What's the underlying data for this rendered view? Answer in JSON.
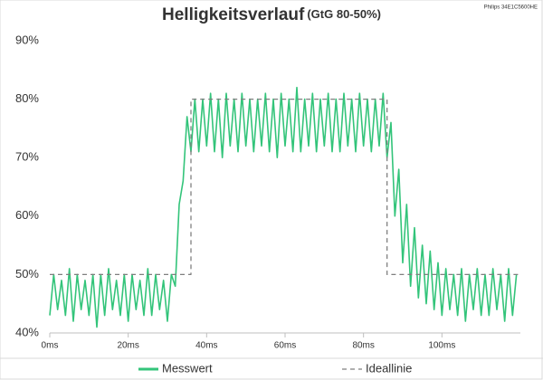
{
  "chart_data": {
    "type": "line",
    "title": "Helligkeitsverlauf",
    "subtitle": "(GtG 80-50%)",
    "annotation": "Philips 34E1C5600HE",
    "xlim": [
      0,
      120
    ],
    "xticks": [
      {
        "value": 0,
        "label": "0ms"
      },
      {
        "value": 20,
        "label": "20ms"
      },
      {
        "value": 40,
        "label": "40ms"
      },
      {
        "value": 60,
        "label": "60ms"
      },
      {
        "value": 80,
        "label": "80ms"
      },
      {
        "value": 100,
        "label": "100ms"
      }
    ],
    "ylim": [
      40,
      90
    ],
    "yticks": [
      {
        "value": 40,
        "label": "40%"
      },
      {
        "value": 50,
        "label": "50%"
      },
      {
        "value": 60,
        "label": "60%"
      },
      {
        "value": 70,
        "label": "70%"
      },
      {
        "value": 80,
        "label": "80%"
      },
      {
        "value": 90,
        "label": "90%"
      }
    ],
    "grid": false,
    "legend": "bottom",
    "series": [
      {
        "name": "Messwert",
        "color": "#33c47a",
        "dash": false,
        "x": [
          0,
          1,
          2,
          3,
          4,
          5,
          6,
          7,
          8,
          9,
          10,
          11,
          12,
          13,
          14,
          15,
          16,
          17,
          18,
          19,
          20,
          21,
          22,
          23,
          24,
          25,
          26,
          27,
          28,
          29,
          30,
          31,
          32,
          33,
          34,
          35,
          36,
          37,
          38,
          39,
          40,
          41,
          42,
          43,
          44,
          45,
          46,
          47,
          48,
          49,
          50,
          51,
          52,
          53,
          54,
          55,
          56,
          57,
          58,
          59,
          60,
          61,
          62,
          63,
          64,
          65,
          66,
          67,
          68,
          69,
          70,
          71,
          72,
          73,
          74,
          75,
          76,
          77,
          78,
          79,
          80,
          81,
          82,
          83,
          84,
          85,
          86,
          87,
          88,
          89,
          90,
          91,
          92,
          93,
          94,
          95,
          96,
          97,
          98,
          99,
          100,
          101,
          102,
          103,
          104,
          105,
          106,
          107,
          108,
          109,
          110,
          111,
          112,
          113,
          114,
          115,
          116,
          117,
          118,
          119
        ],
        "values": [
          43,
          50,
          44,
          49,
          43,
          51,
          42,
          50,
          44,
          49,
          43,
          50,
          41,
          50,
          43,
          51,
          44,
          49,
          43,
          50,
          42,
          50,
          44,
          49,
          43,
          51,
          43,
          50,
          44,
          49,
          42,
          50,
          48,
          62,
          66,
          77,
          71,
          80,
          71,
          80,
          72,
          81,
          71,
          80,
          70,
          81,
          72,
          80,
          71,
          81,
          72,
          80,
          71,
          80,
          72,
          81,
          71,
          80,
          70,
          81,
          72,
          80,
          71,
          82,
          71,
          80,
          72,
          81,
          71,
          80,
          72,
          81,
          71,
          80,
          71,
          81,
          72,
          80,
          71,
          81,
          72,
          80,
          71,
          80,
          72,
          81,
          70,
          76,
          60,
          68,
          52,
          62,
          48,
          58,
          46,
          55,
          45,
          54,
          44,
          52,
          43,
          51,
          44,
          50,
          43,
          51,
          42,
          50,
          44,
          51,
          43,
          50,
          43,
          51,
          44,
          50,
          42,
          51,
          43,
          50
        ]
      },
      {
        "name": "Ideallinie",
        "color": "#7f7f7f",
        "dash": true,
        "x": [
          0,
          36,
          36,
          86,
          86,
          120
        ],
        "values": [
          50,
          50,
          80,
          80,
          50,
          50
        ]
      }
    ]
  }
}
